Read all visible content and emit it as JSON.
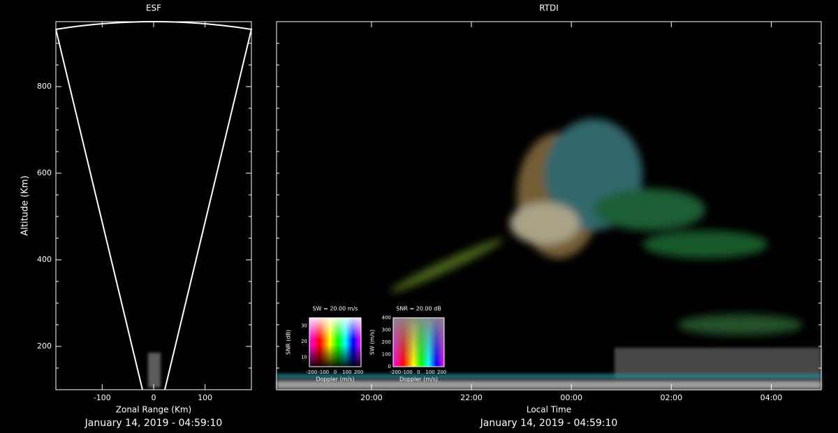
{
  "chart_data": [
    {
      "type": "esf",
      "title": "ESF",
      "xlabel": "Zonal Range (Km)",
      "ylabel": "Altitude (Km)",
      "xlim": [
        -190,
        190
      ],
      "ylim": [
        100,
        950
      ],
      "xticks": [
        -100,
        0,
        100
      ],
      "yticks": [
        200,
        400,
        600,
        800
      ],
      "timestamp": "January 14, 2019 - 04:59:10"
    },
    {
      "type": "rtdi",
      "title": "RTDI",
      "xlabel": "Local Time",
      "xlim": [
        18.1,
        29.0
      ],
      "ylim": [
        100,
        950
      ],
      "xticks": [
        {
          "value": 20,
          "label": "20:00"
        },
        {
          "value": 22,
          "label": "22:00"
        },
        {
          "value": 24,
          "label": "00:00"
        },
        {
          "value": 26,
          "label": "02:00"
        },
        {
          "value": 28,
          "label": "04:00"
        }
      ],
      "timestamp": "January 14, 2019 - 04:59:10",
      "keys": [
        {
          "title": "SW = 20.00 m/s",
          "xlabel": "Doppler (m/s)",
          "ylabel": "SNR (dB)",
          "xlim": [
            -220,
            220
          ],
          "xticks": [
            -200,
            -100,
            0,
            100,
            200
          ],
          "ylim": [
            4,
            35
          ],
          "yticks": [
            10,
            20,
            30
          ]
        },
        {
          "title": "SNR = 20.00 dB",
          "xlabel": "Doppler (m/s)",
          "ylabel": "SW (m/s)",
          "xlim": [
            -220,
            220
          ],
          "xticks": [
            -200,
            -100,
            0,
            100,
            200
          ],
          "ylim": [
            0,
            400
          ],
          "yticks": [
            0,
            100,
            200,
            300,
            400
          ]
        }
      ]
    }
  ]
}
